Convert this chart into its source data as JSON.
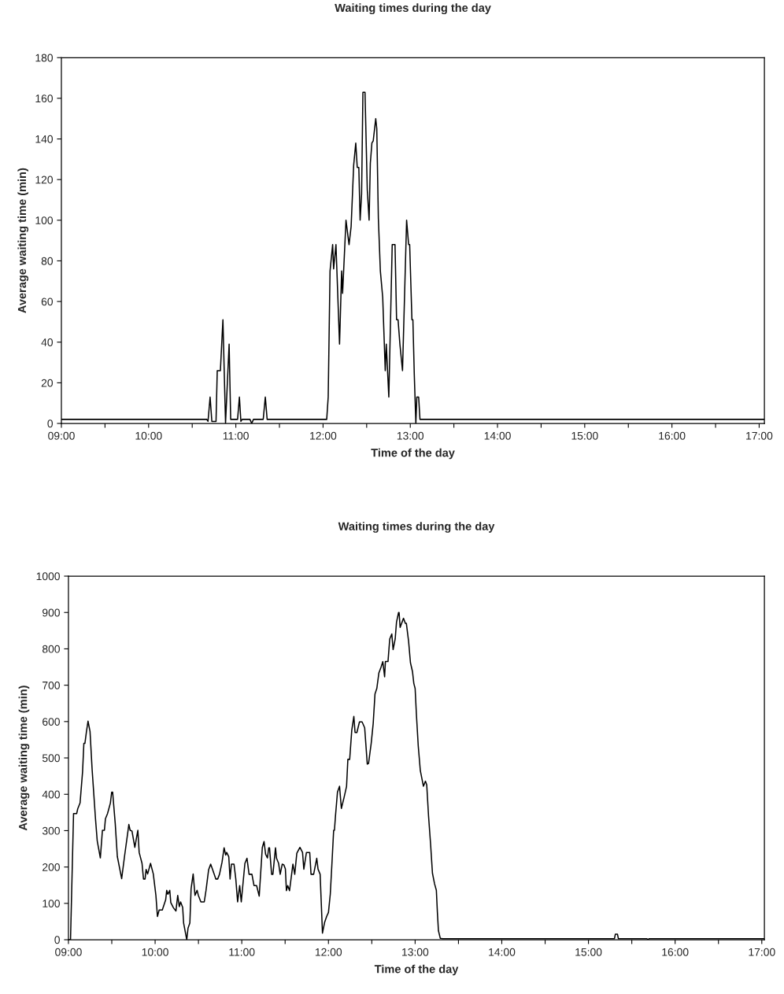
{
  "chart_data": [
    {
      "type": "line",
      "title": "Waiting times during the day",
      "xlabel": "Time of the day",
      "ylabel": "Average waiting time (min)",
      "x": [
        9.0,
        10.667,
        10.681,
        10.705,
        10.725,
        10.773,
        10.787,
        10.823,
        10.852,
        10.882,
        10.923,
        10.941,
        11.02,
        11.041,
        11.058,
        11.073,
        11.162,
        11.182,
        11.202,
        11.314,
        11.338,
        11.359,
        12.042,
        12.059,
        12.08,
        12.11,
        12.121,
        12.148,
        12.189,
        12.213,
        12.224,
        12.263,
        12.298,
        12.322,
        12.351,
        12.375,
        12.392,
        12.41,
        12.425,
        12.442,
        12.457,
        12.481,
        12.507,
        12.528,
        12.542,
        12.56,
        12.575,
        12.604,
        12.616,
        12.634,
        12.657,
        12.684,
        12.713,
        12.725,
        12.754,
        12.793,
        12.825,
        12.843,
        12.86,
        12.881,
        12.911,
        12.958,
        12.981,
        12.993,
        13.019,
        13.03,
        13.046,
        13.064,
        13.075,
        13.096,
        13.111,
        17.06
      ],
      "series": [
        {
          "color": "#000000",
          "values": [
            2,
            2,
            1,
            13,
            1,
            1,
            26,
            26,
            51,
            0,
            39,
            2,
            2,
            13,
            1,
            2,
            2,
            0,
            2,
            2,
            13,
            2,
            2,
            13,
            75,
            88,
            76,
            88,
            39,
            75,
            64,
            100,
            88,
            97,
            127,
            138,
            126,
            126,
            100,
            113,
            163,
            163,
            115,
            100,
            128,
            138,
            139,
            150,
            145,
            101,
            75,
            62,
            26,
            39,
            13,
            88,
            88,
            51,
            51,
            39,
            26,
            100,
            88,
            88,
            51,
            51,
            24,
            0,
            13,
            13,
            2,
            2
          ]
        }
      ],
      "xlim": [
        9,
        17.06
      ],
      "ylim": [
        0,
        180
      ],
      "xticks": [
        {
          "value": 9,
          "label": "09:00"
        },
        {
          "value": 9.5,
          "label": null
        },
        {
          "value": 10,
          "label": "10:00"
        },
        {
          "value": 10.5,
          "label": null
        },
        {
          "value": 11,
          "label": "11:00"
        },
        {
          "value": 11.5,
          "label": null
        },
        {
          "value": 12,
          "label": "12:00"
        },
        {
          "value": 12.5,
          "label": null
        },
        {
          "value": 13,
          "label": "13:00"
        },
        {
          "value": 13.5,
          "label": null
        },
        {
          "value": 14,
          "label": "14:00"
        },
        {
          "value": 14.5,
          "label": null
        },
        {
          "value": 15,
          "label": "15:00"
        },
        {
          "value": 15.5,
          "label": null
        },
        {
          "value": 16,
          "label": "16:00"
        },
        {
          "value": 16.5,
          "label": null
        },
        {
          "value": 17,
          "label": "17:00"
        }
      ],
      "yticks": [
        0,
        20,
        40,
        60,
        80,
        100,
        120,
        140,
        160,
        180
      ],
      "grid": false,
      "marker": "none",
      "line_style": "solid"
    },
    {
      "type": "line",
      "title": "Waiting times during the day",
      "xlabel": "Time of the day",
      "ylabel": "Average waiting time (min)",
      "x": [
        9.0,
        9.024,
        9.059,
        9.095,
        9.107,
        9.134,
        9.163,
        9.178,
        9.19,
        9.208,
        9.226,
        9.249,
        9.273,
        9.312,
        9.332,
        9.368,
        9.392,
        9.415,
        9.427,
        9.451,
        9.484,
        9.499,
        9.51,
        9.54,
        9.564,
        9.614,
        9.647,
        9.697,
        9.712,
        9.733,
        9.766,
        9.801,
        9.816,
        9.849,
        9.866,
        9.884,
        9.896,
        9.914,
        9.947,
        9.979,
        10.009,
        10.027,
        10.047,
        10.083,
        10.122,
        10.134,
        10.148,
        10.169,
        10.181,
        10.211,
        10.24,
        10.261,
        10.279,
        10.294,
        10.318,
        10.329,
        10.365,
        10.38,
        10.401,
        10.415,
        10.439,
        10.46,
        10.484,
        10.499,
        10.528,
        10.567,
        10.587,
        10.617,
        10.641,
        10.662,
        10.701,
        10.722,
        10.743,
        10.772,
        10.796,
        10.814,
        10.826,
        10.85,
        10.865,
        10.88,
        10.91,
        10.931,
        10.952,
        10.976,
        10.994,
        11.036,
        11.06,
        11.084,
        11.117,
        11.141,
        11.171,
        11.201,
        11.237,
        11.257,
        11.275,
        11.296,
        11.311,
        11.32,
        11.344,
        11.359,
        11.389,
        11.401,
        11.425,
        11.443,
        11.467,
        11.485,
        11.503,
        11.515,
        11.53,
        11.551,
        11.59,
        11.611,
        11.635,
        11.671,
        11.701,
        11.716,
        11.746,
        11.784,
        11.799,
        11.829,
        11.865,
        11.88,
        11.904,
        11.931,
        11.955,
        11.979,
        12.0,
        12.021,
        12.039,
        12.06,
        12.069,
        12.081,
        12.104,
        12.128,
        12.149,
        12.179,
        12.209,
        12.224,
        12.245,
        12.269,
        12.293,
        12.307,
        12.328,
        12.358,
        12.388,
        12.418,
        12.448,
        12.463,
        12.493,
        12.516,
        12.537,
        12.558,
        12.582,
        12.606,
        12.627,
        12.648,
        12.657,
        12.687,
        12.707,
        12.731,
        12.746,
        12.77,
        12.785,
        12.809,
        12.815,
        12.827,
        12.866,
        12.887,
        12.899,
        12.925,
        12.946,
        12.97,
        12.985,
        13.0,
        13.015,
        13.036,
        13.06,
        13.096,
        13.119,
        13.134,
        13.155,
        13.179,
        13.2,
        13.224,
        13.245,
        13.257,
        13.269,
        13.29,
        13.32,
        15.3,
        15.31,
        15.335,
        15.345,
        15.675,
        15.687,
        15.7,
        17.03
      ],
      "series": [
        {
          "color": "#000000",
          "values": [
            0,
            0,
            347,
            347,
            360,
            376,
            462,
            540,
            540,
            573,
            601,
            573,
            469,
            333,
            272,
            225,
            301,
            301,
            333,
            347,
            376,
            406,
            406,
            319,
            229,
            168,
            229,
            317,
            301,
            299,
            254,
            301,
            240,
            210,
            167,
            167,
            193,
            181,
            210,
            181,
            122,
            64,
            82,
            82,
            110,
            136,
            125,
            136,
            102,
            88,
            79,
            122,
            91,
            104,
            89,
            46,
            0,
            32,
            46,
            140,
            181,
            122,
            136,
            122,
            104,
            104,
            135,
            192,
            208,
            194,
            167,
            167,
            180,
            213,
            253,
            233,
            240,
            228,
            167,
            208,
            208,
            167,
            104,
            149,
            104,
            210,
            224,
            180,
            180,
            149,
            149,
            120,
            254,
            270,
            235,
            225,
            253,
            253,
            180,
            180,
            253,
            224,
            210,
            180,
            208,
            206,
            195,
            135,
            149,
            135,
            208,
            180,
            238,
            254,
            240,
            194,
            240,
            240,
            180,
            180,
            224,
            194,
            180,
            18,
            47,
            64,
            75,
            125,
            204,
            301,
            301,
            340,
            406,
            422,
            361,
            390,
            422,
            496,
            496,
            576,
            614,
            570,
            570,
            599,
            599,
            583,
            483,
            485,
            540,
            594,
            676,
            691,
            734,
            749,
            765,
            723,
            765,
            765,
            827,
            841,
            798,
            827,
            873,
            900,
            900,
            859,
            884,
            870,
            870,
            820,
            762,
            737,
            705,
            691,
            619,
            533,
            465,
            422,
            436,
            426,
            340,
            261,
            183,
            154,
            136,
            75,
            25,
            4,
            3,
            3,
            15,
            15,
            3,
            3,
            0,
            3,
            3
          ]
        }
      ],
      "xlim": [
        9,
        17.03
      ],
      "ylim": [
        0,
        1000
      ],
      "xticks": [
        {
          "value": 9,
          "label": "09:00"
        },
        {
          "value": 9.5,
          "label": null
        },
        {
          "value": 10,
          "label": "10:00"
        },
        {
          "value": 10.5,
          "label": null
        },
        {
          "value": 11,
          "label": "11:00"
        },
        {
          "value": 11.5,
          "label": null
        },
        {
          "value": 12,
          "label": "12:00"
        },
        {
          "value": 12.5,
          "label": null
        },
        {
          "value": 13,
          "label": "13:00"
        },
        {
          "value": 13.5,
          "label": null
        },
        {
          "value": 14,
          "label": "14:00"
        },
        {
          "value": 14.5,
          "label": null
        },
        {
          "value": 15,
          "label": "15:00"
        },
        {
          "value": 15.5,
          "label": null
        },
        {
          "value": 16,
          "label": "16:00"
        },
        {
          "value": 16.5,
          "label": null
        },
        {
          "value": 17,
          "label": "17:00"
        }
      ],
      "yticks": [
        0,
        100,
        200,
        300,
        400,
        500,
        600,
        700,
        800,
        900,
        1000
      ],
      "grid": false,
      "marker": "none",
      "line_style": "solid"
    }
  ]
}
